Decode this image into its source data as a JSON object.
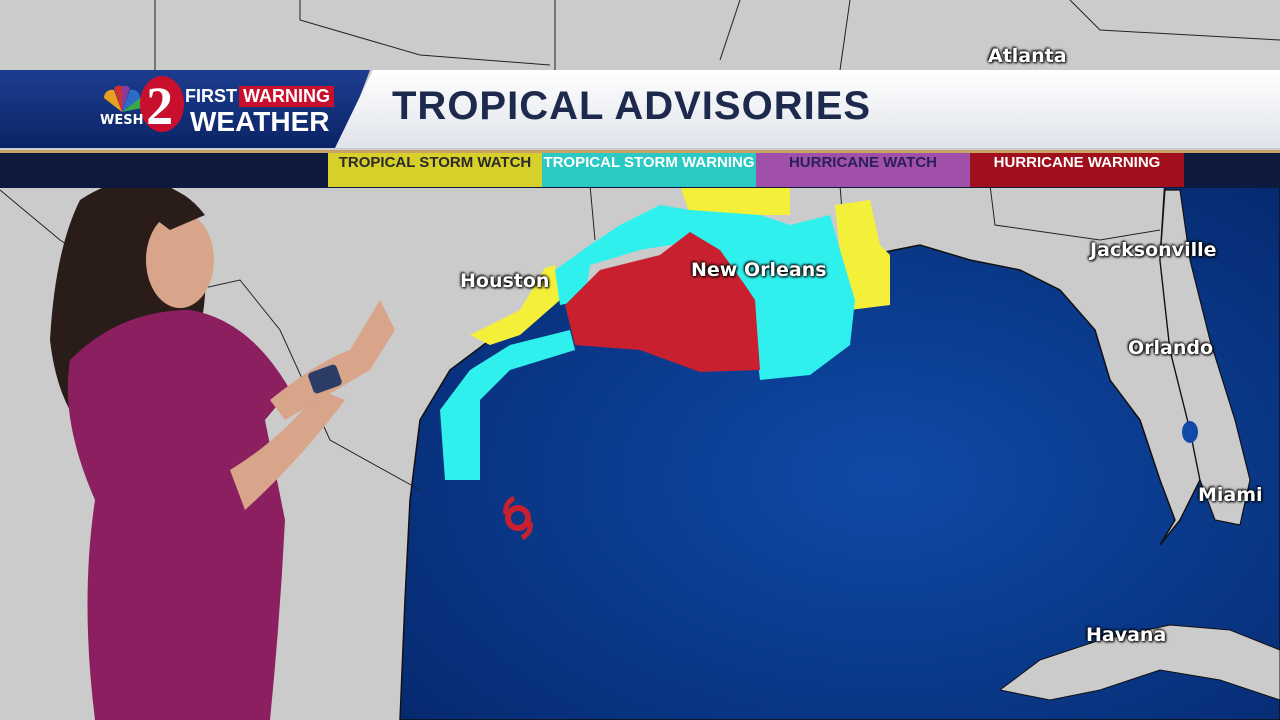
{
  "header": {
    "station_logo": "WESH 2",
    "brand_line1a": "FIRST",
    "brand_line1b": "WARNING",
    "brand_line2": "WEATHER",
    "title": "TROPICAL ADVISORIES"
  },
  "legend": [
    {
      "label": "TROPICAL STORM WATCH",
      "color": "#d7cf2a",
      "text_color": "#2a2a2a"
    },
    {
      "label": "TROPICAL STORM WARNING",
      "color": "#2bc9c4",
      "text_color": "#ffffff"
    },
    {
      "label": "HURRICANE WATCH",
      "color": "#a050a8",
      "text_color": "#2a1f5a"
    },
    {
      "label": "HURRICANE WARNING",
      "color": "#a10e1c",
      "text_color": "#ffffff"
    }
  ],
  "map": {
    "colors": {
      "land": "#c9c9c9",
      "water": "#0b3a8e",
      "ts_watch": "#f4f03a",
      "ts_warning": "#30f0ee",
      "hurricane_warning": "#c8202e"
    },
    "cities": [
      "Atlanta",
      "Houston",
      "New Orleans",
      "Jacksonville",
      "Orlando",
      "Miami",
      "Havana"
    ],
    "storm_icon": "tropical-cyclone-icon"
  }
}
